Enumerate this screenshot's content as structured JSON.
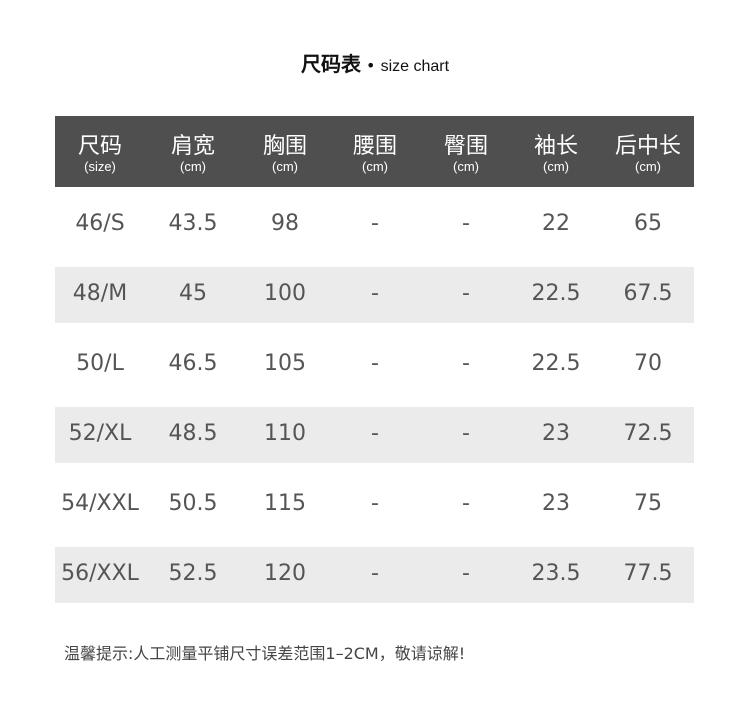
{
  "title": {
    "zh": "尺码表",
    "sep": " • ",
    "en": "size chart"
  },
  "columns": [
    {
      "label": "尺码",
      "unit": "(size)"
    },
    {
      "label": "肩宽",
      "unit": "(cm)"
    },
    {
      "label": "胸围",
      "unit": "(cm)"
    },
    {
      "label": "腰围",
      "unit": "(cm)"
    },
    {
      "label": "臀围",
      "unit": "(cm)"
    },
    {
      "label": "袖长",
      "unit": "(cm)"
    },
    {
      "label": "后中长",
      "unit": "(cm)"
    }
  ],
  "rows": [
    [
      "46/S",
      "43.5",
      "98",
      "-",
      "-",
      "22",
      "65"
    ],
    [
      "48/M",
      "45",
      "100",
      "-",
      "-",
      "22.5",
      "67.5"
    ],
    [
      "50/L",
      "46.5",
      "105",
      "-",
      "-",
      "22.5",
      "70"
    ],
    [
      "52/XL",
      "48.5",
      "110",
      "-",
      "-",
      "23",
      "72.5"
    ],
    [
      "54/XXL",
      "50.5",
      "115",
      "-",
      "-",
      "23",
      "75"
    ],
    [
      "56/XXL",
      "52.5",
      "120",
      "-",
      "-",
      "23.5",
      "77.5"
    ]
  ],
  "note": "温馨提示:人工测量平铺尺寸误差范围1–2CM，敬请谅解!",
  "colors": {
    "header_bg": "#4f4f4f",
    "alt_row": "#ebebeb",
    "text": "#555555"
  }
}
